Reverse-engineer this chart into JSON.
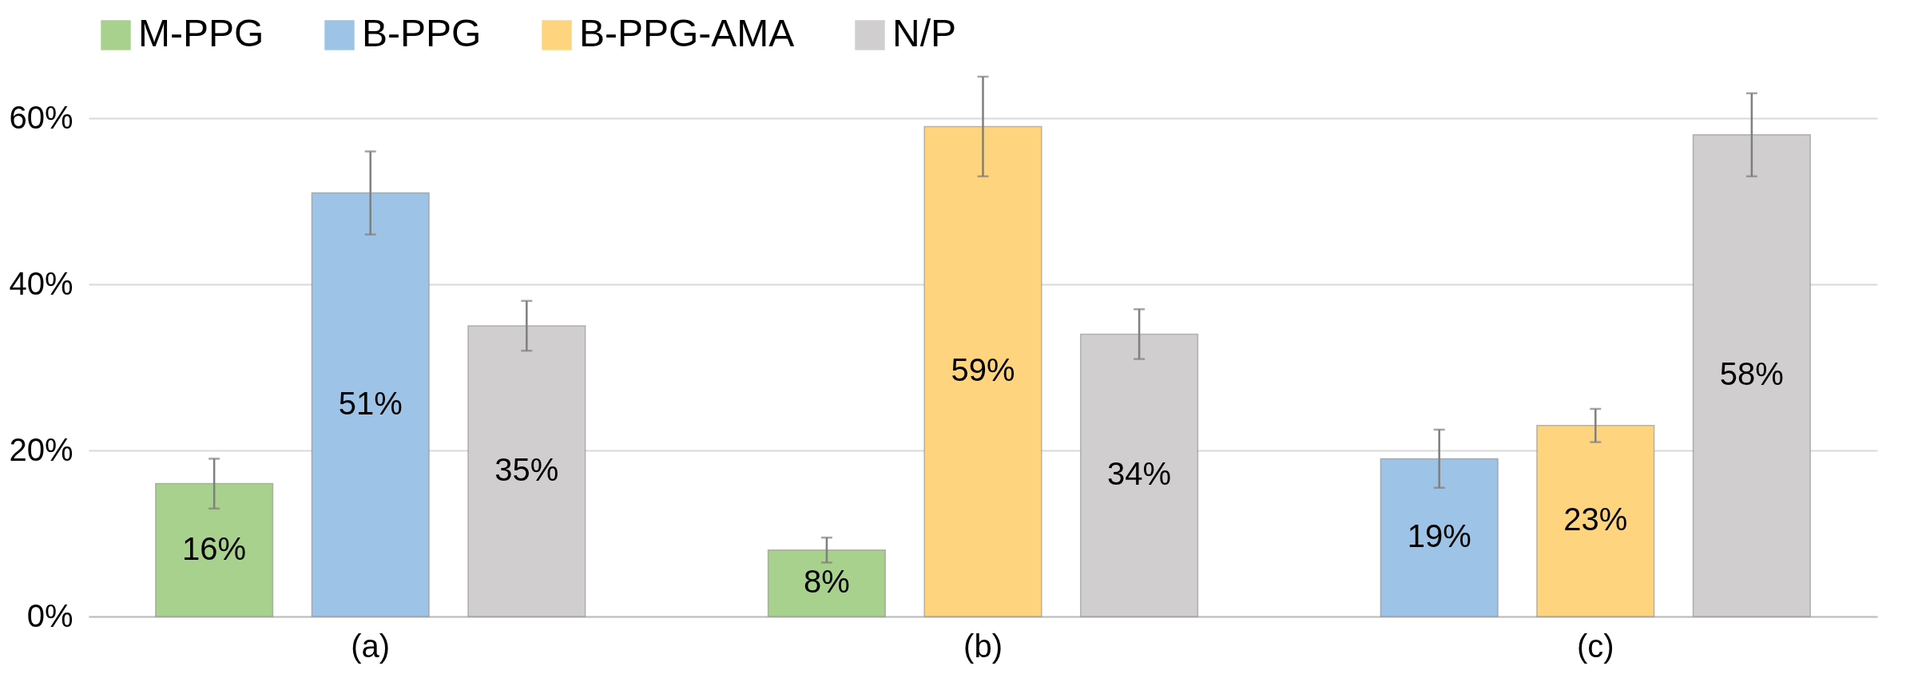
{
  "chart_data": {
    "type": "bar",
    "categories": [
      "(a)",
      "(b)",
      "(c)"
    ],
    "series": [
      {
        "name": "M-PPG",
        "color": "#a9d18e",
        "values": [
          16,
          8,
          null
        ],
        "errors": [
          3,
          1.5,
          null
        ],
        "value_labels": [
          "16%",
          "8%",
          null
        ]
      },
      {
        "name": "B-PPG",
        "color": "#9dc3e6",
        "values": [
          51,
          null,
          19
        ],
        "errors": [
          5,
          null,
          3.5
        ],
        "value_labels": [
          "51%",
          null,
          "19%"
        ]
      },
      {
        "name": "B-PPG-AMA",
        "color": "#ffd47f",
        "values": [
          null,
          59,
          23
        ],
        "errors": [
          null,
          6,
          2
        ],
        "value_labels": [
          null,
          "59%",
          "23%"
        ]
      },
      {
        "name": "N/P",
        "color": "#d0cece",
        "values": [
          35,
          34,
          58
        ],
        "errors": [
          3,
          3,
          5
        ],
        "value_labels": [
          "35%",
          "34%",
          "58%"
        ]
      }
    ],
    "ylim": [
      0,
      65
    ],
    "yticks": [
      {
        "value": 0,
        "label": "0%"
      },
      {
        "value": 20,
        "label": "20%"
      },
      {
        "value": 40,
        "label": "40%"
      },
      {
        "value": 60,
        "label": "60%"
      }
    ],
    "grid": "y",
    "legend": "top"
  }
}
